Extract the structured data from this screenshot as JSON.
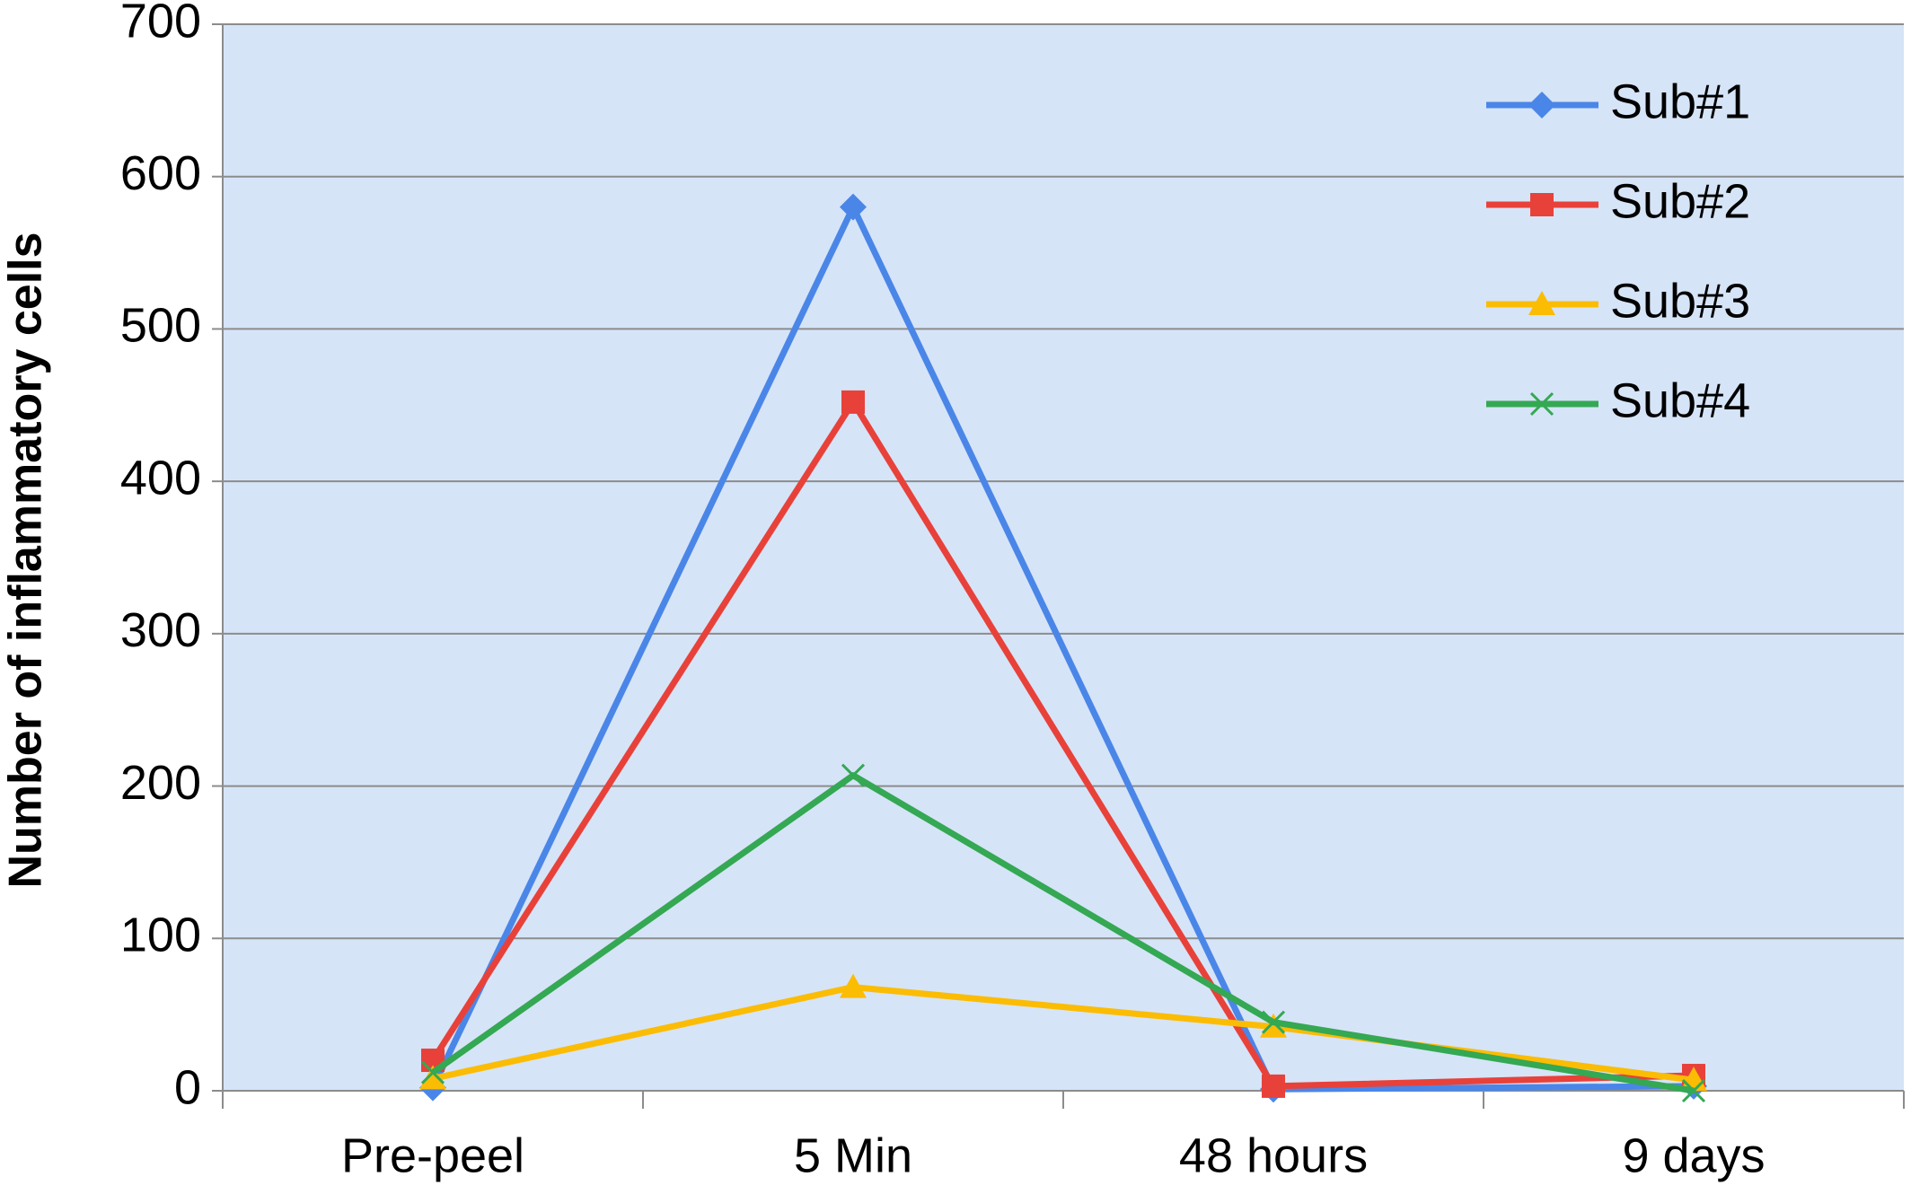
{
  "chart_data": {
    "type": "line",
    "y_label": "Number of inflammatory cells",
    "categories": [
      "Pre-peel",
      "5 Min",
      "48 hours",
      "9 days"
    ],
    "series": [
      {
        "name": "Sub#1",
        "color": "#4a86e8",
        "marker": "diamond",
        "values": [
          2,
          580,
          1,
          3
        ]
      },
      {
        "name": "Sub#2",
        "color": "#e8413a",
        "marker": "square",
        "values": [
          20,
          452,
          3,
          10
        ]
      },
      {
        "name": "Sub#3",
        "color": "#fbbc04",
        "marker": "triangle",
        "values": [
          8,
          68,
          42,
          7
        ]
      },
      {
        "name": "Sub#4",
        "color": "#34a853",
        "marker": "x",
        "values": [
          12,
          207,
          45,
          0
        ]
      }
    ],
    "ylim": [
      0,
      700
    ],
    "yticks": [
      0,
      100,
      200,
      300,
      400,
      500,
      600,
      700
    ],
    "grid": true,
    "legend": "upper right",
    "background": "#d6e4f7"
  }
}
